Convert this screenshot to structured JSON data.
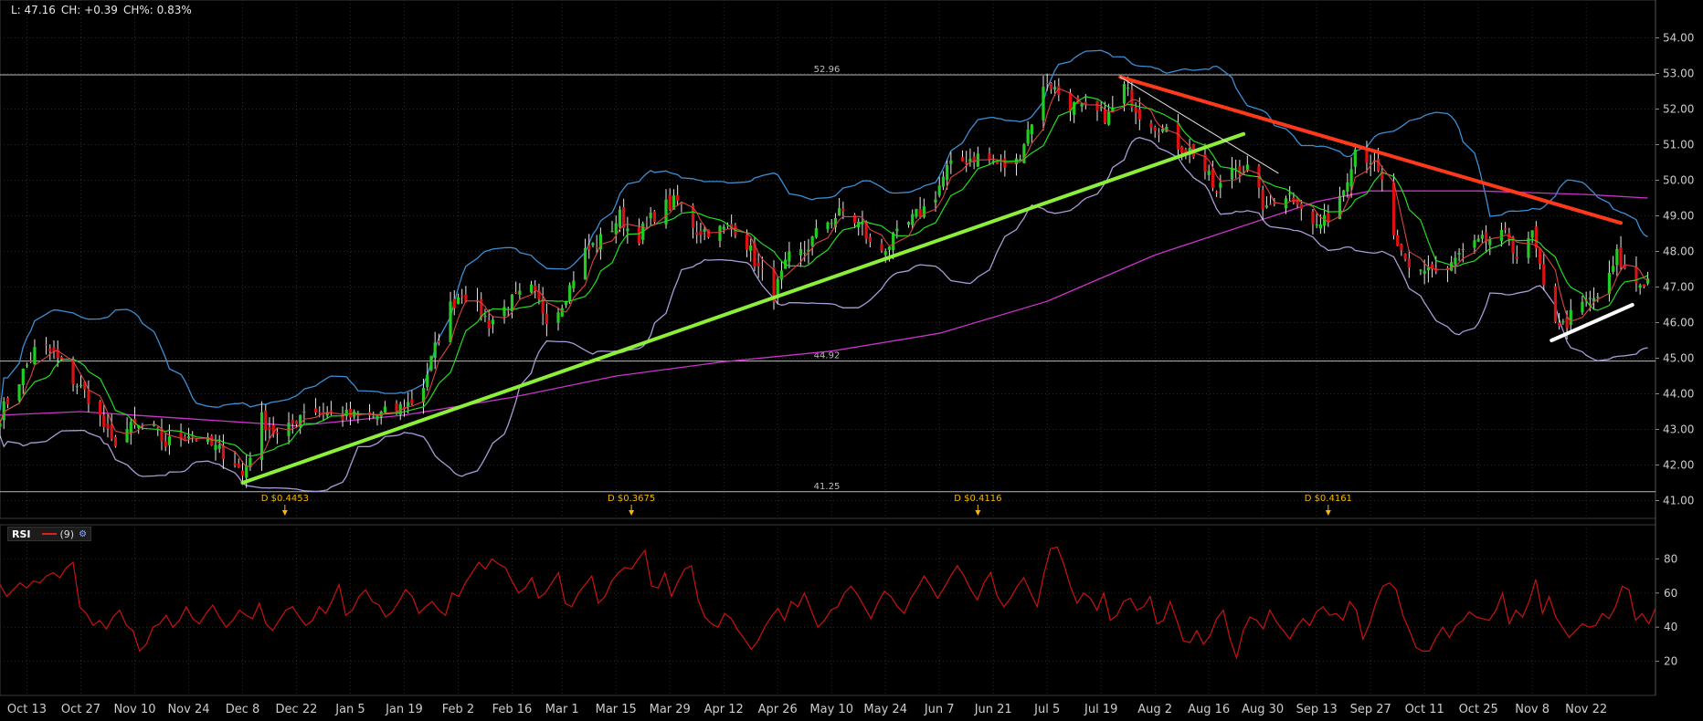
{
  "info_bar": {
    "low": "L: 47.16",
    "change": "CH: +0.39",
    "change_pct": "CH%: 0.83%"
  },
  "rsi_legend": {
    "title": "RSI",
    "period": "(9)",
    "icon": "settings-icon"
  },
  "colors": {
    "background": "#000000",
    "grid": "#2a2a2a",
    "axis_text": "#cccccc",
    "candle_up": "#22cc22",
    "candle_down": "#dd1111",
    "bollinger": "#3a8fd6",
    "bollinger_lower": "#a99bd6",
    "sma_fast": "#d84444",
    "sma_mid": "#22dd22",
    "sma_200": "#cc33cc",
    "support_trendline": "#8cf03a",
    "resistance_trendline": "#ff3a1a",
    "short_trendline": "#ffffff",
    "rsi_line": "#cc1111",
    "dividend": "#f5b800"
  },
  "chart_data": [
    {
      "type": "candlestick",
      "title": "",
      "ylim": [
        40.5,
        54.5
      ],
      "y_ticks": [
        "54.00",
        "53.00",
        "52.00",
        "51.00",
        "50.00",
        "49.00",
        "48.00",
        "47.00",
        "46.00",
        "45.00",
        "44.00",
        "43.00",
        "42.00",
        "41.00"
      ],
      "x_ticks": [
        "Oct 13",
        "Oct 27",
        "Nov 10",
        "Nov 24",
        "Dec 8",
        "Dec 22",
        "Jan 5",
        "Jan 19",
        "Feb 2",
        "Feb 16",
        "Mar 1",
        "Mar 15",
        "Mar 29",
        "Apr 12",
        "Apr 26",
        "May 10",
        "May 24",
        "Jun 7",
        "Jun 21",
        "Jul 5",
        "Jul 19",
        "Aug 2",
        "Aug 16",
        "Aug 30",
        "Sep 13",
        "Sep 27",
        "Oct 11",
        "Oct 25",
        "Nov 8",
        "Nov 22"
      ],
      "horizontal_levels": [
        {
          "label": "52.96",
          "value": 52.96
        },
        {
          "label": "44.92",
          "value": 44.92
        },
        {
          "label": "41.25",
          "value": 41.25
        }
      ],
      "dividends": [
        {
          "label": "D $0.4453",
          "date": "Dec 19"
        },
        {
          "label": "D $0.3675",
          "date": "Mar 19"
        },
        {
          "label": "D $0.4116",
          "date": "Jun 17"
        },
        {
          "label": "D $0.4161",
          "date": "Sep 16"
        }
      ],
      "price_path": [
        [
          "Oct 6",
          43.4
        ],
        [
          "Oct 10",
          44.2
        ],
        [
          "Oct 16",
          45.4
        ],
        [
          "Oct 20",
          45.1
        ],
        [
          "Oct 24",
          44.5
        ],
        [
          "Oct 30",
          43.8
        ],
        [
          "Nov 4",
          42.6
        ],
        [
          "Nov 8",
          43.0
        ],
        [
          "Nov 14",
          43.1
        ],
        [
          "Nov 18",
          42.6
        ],
        [
          "Nov 24",
          42.9
        ],
        [
          "Dec 2",
          42.4
        ],
        [
          "Dec 5",
          42.3
        ],
        [
          "Dec 8",
          41.7
        ],
        [
          "Dec 13",
          43.3
        ],
        [
          "Dec 18",
          42.7
        ],
        [
          "Dec 24",
          43.6
        ],
        [
          "Jan 2",
          43.4
        ],
        [
          "Jan 9",
          43.3
        ],
        [
          "Jan 16",
          43.5
        ],
        [
          "Jan 23",
          43.9
        ],
        [
          "Jan 30",
          46.3
        ],
        [
          "Feb 3",
          46.9
        ],
        [
          "Feb 10",
          46.0
        ],
        [
          "Feb 16",
          46.6
        ],
        [
          "Feb 21",
          46.9
        ],
        [
          "Feb 26",
          46.0
        ],
        [
          "Mar 3",
          47.0
        ],
        [
          "Mar 6",
          47.9
        ],
        [
          "Mar 12",
          48.4
        ],
        [
          "Mar 16",
          49.0
        ],
        [
          "Mar 20",
          48.3
        ],
        [
          "Mar 26",
          49.2
        ],
        [
          "Mar 31",
          49.4
        ],
        [
          "Apr 5",
          48.6
        ],
        [
          "Apr 12",
          48.6
        ],
        [
          "Apr 16",
          48.7
        ],
        [
          "Apr 21",
          47.5
        ],
        [
          "Apr 25",
          46.8
        ],
        [
          "Apr 29",
          47.8
        ],
        [
          "May 3",
          48.0
        ],
        [
          "May 8",
          48.8
        ],
        [
          "May 13",
          49.1
        ],
        [
          "May 18",
          48.7
        ],
        [
          "May 21",
          47.9
        ],
        [
          "May 26",
          48.3
        ],
        [
          "Jun 1",
          49.0
        ],
        [
          "Jun 5",
          49.4
        ],
        [
          "Jun 9",
          50.3
        ],
        [
          "Jun 14",
          50.6
        ],
        [
          "Jun 18",
          50.7
        ],
        [
          "Jun 23",
          50.4
        ],
        [
          "Jun 27",
          50.5
        ],
        [
          "Jul 1",
          51.7
        ],
        [
          "Jul 5",
          52.8
        ],
        [
          "Jul 9",
          52.3
        ],
        [
          "Jul 13",
          52.0
        ],
        [
          "Jul 17",
          51.9
        ],
        [
          "Jul 21",
          51.8
        ],
        [
          "Jul 25",
          52.6
        ],
        [
          "Jul 29",
          51.9
        ],
        [
          "Aug 3",
          51.5
        ],
        [
          "Aug 8",
          51.0
        ],
        [
          "Aug 13",
          50.7
        ],
        [
          "Aug 18",
          49.6
        ],
        [
          "Aug 22",
          50.4
        ],
        [
          "Aug 26",
          50.3
        ],
        [
          "Aug 31",
          49.1
        ],
        [
          "Sep 3",
          49.7
        ],
        [
          "Sep 8",
          49.5
        ],
        [
          "Sep 12",
          48.7
        ],
        [
          "Sep 15",
          48.8
        ],
        [
          "Sep 20",
          49.8
        ],
        [
          "Sep 23",
          50.9
        ],
        [
          "Sep 27",
          50.6
        ],
        [
          "Sep 30",
          49.9
        ],
        [
          "Oct 4",
          48.0
        ],
        [
          "Oct 8",
          47.3
        ],
        [
          "Oct 12",
          47.6
        ],
        [
          "Oct 16",
          47.3
        ],
        [
          "Oct 20",
          47.9
        ],
        [
          "Oct 25",
          48.2
        ],
        [
          "Oct 29",
          48.4
        ],
        [
          "Nov 2",
          48.4
        ],
        [
          "Nov 5",
          47.6
        ],
        [
          "Nov 8",
          48.5
        ],
        [
          "Nov 12",
          46.4
        ],
        [
          "Nov 16",
          45.9
        ],
        [
          "Nov 19",
          46.3
        ],
        [
          "Nov 23",
          46.6
        ],
        [
          "Nov 27",
          46.9
        ],
        [
          "Nov 30",
          47.9
        ],
        [
          "Dec 3",
          47.2
        ],
        [
          "Dec 6",
          47.1
        ],
        [
          "Dec 8",
          47.2
        ]
      ],
      "sma_200_path": [
        [
          "Oct 6",
          43.4
        ],
        [
          "Oct 27",
          43.5
        ],
        [
          "Nov 24",
          43.3
        ],
        [
          "Dec 22",
          43.1
        ],
        [
          "Jan 19",
          43.4
        ],
        [
          "Feb 16",
          43.9
        ],
        [
          "Mar 15",
          44.5
        ],
        [
          "Apr 12",
          44.9
        ],
        [
          "May 10",
          45.2
        ],
        [
          "Jun 7",
          45.7
        ],
        [
          "Jul 5",
          46.6
        ],
        [
          "Aug 2",
          47.9
        ],
        [
          "Aug 16",
          48.4
        ],
        [
          "Aug 30",
          48.9
        ],
        [
          "Sep 13",
          49.4
        ],
        [
          "Sep 27",
          49.7
        ],
        [
          "Oct 25",
          49.7
        ],
        [
          "Nov 22",
          49.6
        ],
        [
          "Dec 8",
          49.5
        ]
      ],
      "trendlines": [
        {
          "name": "support",
          "from": [
            "Dec 8",
            41.5
          ],
          "to": [
            "Aug 25",
            51.3
          ]
        },
        {
          "name": "resistance",
          "from": [
            "Jul 24",
            52.9
          ],
          "to": [
            "Dec 1",
            48.8
          ]
        },
        {
          "name": "short",
          "from": [
            "Nov 13",
            45.5
          ],
          "to": [
            "Dec 4",
            46.5
          ]
        },
        {
          "name": "thin",
          "from": [
            "Jul 24",
            52.9
          ],
          "to": [
            "Sep 3",
            50.2
          ]
        }
      ]
    },
    {
      "type": "line",
      "title": "",
      "series": [
        {
          "name": "RSI",
          "values": [
            65,
            58,
            62,
            66,
            63,
            67,
            66,
            70,
            72,
            69,
            75,
            78,
            52,
            48,
            41,
            44,
            39,
            46,
            50,
            41,
            38,
            26,
            30,
            40,
            42,
            47,
            40,
            44,
            52,
            45,
            42,
            48,
            53,
            46,
            40,
            44,
            50,
            47,
            45,
            54,
            42,
            38,
            44,
            50,
            52,
            46,
            41,
            44,
            52,
            48,
            56,
            65,
            47,
            50,
            58,
            62,
            55,
            53,
            46,
            49,
            55,
            62,
            58,
            48,
            52,
            55,
            50,
            47,
            60,
            58,
            66,
            72,
            78,
            74,
            80,
            77,
            75,
            67,
            60,
            63,
            69,
            57,
            60,
            66,
            72,
            54,
            52,
            60,
            65,
            70,
            54,
            58,
            67,
            72,
            75,
            74,
            80,
            85,
            64,
            63,
            72,
            58,
            67,
            74,
            76,
            56,
            46,
            42,
            40,
            48,
            45,
            38,
            33,
            27,
            32,
            40,
            46,
            51,
            44,
            55,
            52,
            60,
            50,
            40,
            44,
            50,
            52,
            60,
            64,
            59,
            52,
            45,
            54,
            61,
            58,
            52,
            48,
            57,
            63,
            70,
            64,
            57,
            63,
            70,
            76,
            70,
            62,
            56,
            66,
            72,
            58,
            52,
            57,
            64,
            69,
            60,
            52,
            71,
            86,
            87,
            77,
            64,
            54,
            60,
            57,
            50,
            60,
            44,
            47,
            55,
            57,
            50,
            52,
            58,
            42,
            44,
            55,
            44,
            32,
            31,
            38,
            30,
            35,
            45,
            50,
            33,
            22,
            38,
            46,
            44,
            39,
            50,
            43,
            38,
            33,
            40,
            45,
            41,
            49,
            52,
            47,
            48,
            44,
            55,
            50,
            33,
            42,
            55,
            64,
            66,
            62,
            47,
            38,
            28,
            26,
            26,
            34,
            40,
            34,
            41,
            44,
            49,
            46,
            45,
            44,
            50,
            60,
            42,
            50,
            46,
            55,
            68,
            48,
            58,
            46,
            40,
            34,
            38,
            42,
            40,
            41,
            48,
            45,
            52,
            64,
            62,
            44,
            48,
            42,
            51
          ]
        }
      ],
      "ylim": [
        0,
        100
      ],
      "y_ticks": [
        "80",
        "60",
        "40",
        "20"
      ]
    }
  ]
}
